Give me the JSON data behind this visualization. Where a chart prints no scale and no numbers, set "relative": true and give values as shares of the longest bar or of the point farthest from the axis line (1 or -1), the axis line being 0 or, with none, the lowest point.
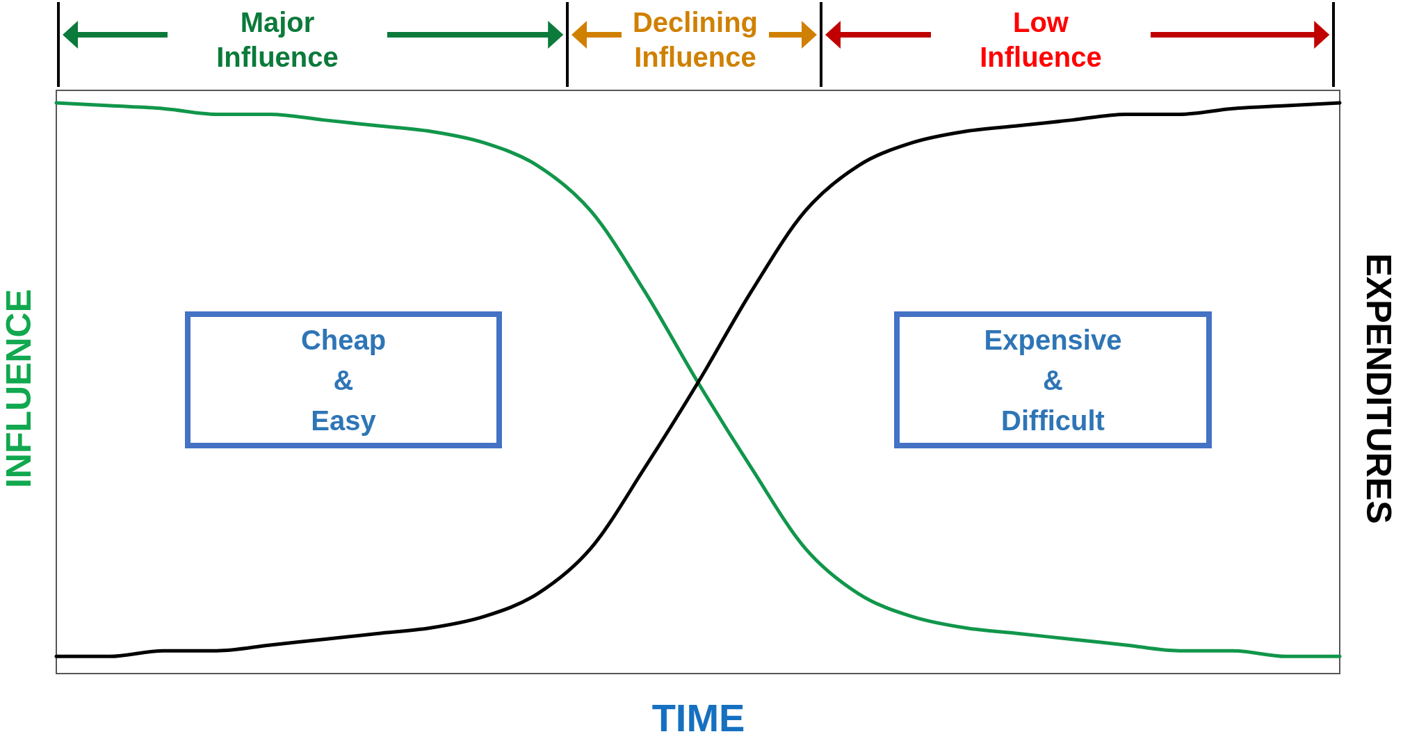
{
  "chart_data": {
    "type": "line",
    "relative": true,
    "xlabel": "TIME",
    "ylabel": "INFLUENCE",
    "y2label": "EXPENDITURES",
    "categories": [
      null,
      null,
      null,
      null,
      null,
      null,
      null,
      null,
      null,
      null,
      null,
      null,
      null,
      null,
      null,
      null,
      null,
      null,
      null,
      null,
      null,
      null,
      null,
      null,
      null
    ],
    "series": [
      {
        "color": "#11964b",
        "values": [
          1,
          0.995,
          0.99,
          0.98,
          0.98,
          0.97,
          0.96,
          0.95,
          0.93,
          0.89,
          0.81,
          0.67,
          0.51,
          0.36,
          0.22,
          0.14,
          0.1,
          0.08,
          0.07,
          0.06,
          0.05,
          0.04,
          0.04,
          0.03,
          0.03
        ]
      },
      {
        "color": "#000000",
        "values": [
          0.03,
          0.03,
          0.04,
          0.04,
          0.05,
          0.06,
          0.07,
          0.08,
          0.1,
          0.14,
          0.22,
          0.36,
          0.51,
          0.67,
          0.81,
          0.89,
          0.93,
          0.95,
          0.96,
          0.97,
          0.98,
          0.98,
          0.99,
          0.995,
          1
        ]
      }
    ],
    "annotations": [
      "Major Influence",
      "Declining Influence",
      "Low Influence",
      "Cheap & Easy",
      "Expensive & Difficult"
    ]
  }
}
